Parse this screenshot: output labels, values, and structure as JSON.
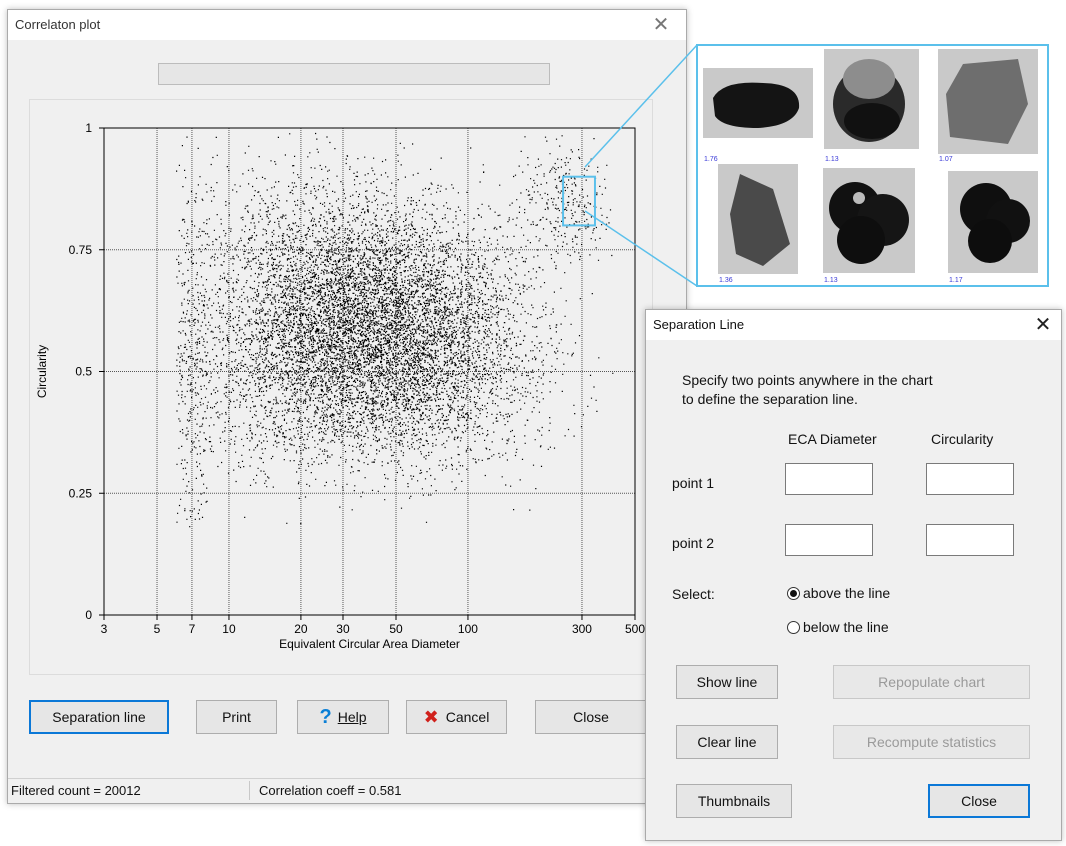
{
  "correlation_window": {
    "title": "Correlaton plot",
    "buttons": {
      "separation_line": "Separation line",
      "print": "Print",
      "help": "Help",
      "cancel": "Cancel",
      "close": "Close"
    },
    "status": {
      "filtered_count": "Filtered count = 20012",
      "correlation": "Correlation coeff = 0.581"
    }
  },
  "chart_data": {
    "type": "scatter",
    "xlabel": "Equivalent Circular Area Diameter",
    "ylabel": "Circularity",
    "x_scale": "log",
    "xlim": [
      3,
      500
    ],
    "ylim": [
      0,
      1
    ],
    "x_ticks": [
      3,
      5,
      7,
      10,
      20,
      30,
      50,
      100,
      300,
      500
    ],
    "y_ticks": [
      0,
      0.25,
      0.5,
      0.75,
      1
    ],
    "x_tick_labels": [
      "3",
      "5",
      "7",
      "10",
      "20",
      "30",
      "50",
      "100",
      "300",
      "500"
    ],
    "y_tick_labels": [
      "0",
      "0.25",
      "0.5",
      "0.75",
      "1"
    ],
    "grid": true,
    "point_color": "#000000",
    "clusters": [
      {
        "x_center": 40,
        "y_center": 0.58,
        "x_spread_log10": 0.28,
        "y_spread": 0.12,
        "count": 9000
      },
      {
        "x_center": 25,
        "y_center": 0.62,
        "x_spread_log10": 0.35,
        "y_spread": 0.16,
        "count": 3000
      },
      {
        "x_center": 250,
        "y_center": 0.85,
        "x_spread_log10": 0.1,
        "y_spread": 0.06,
        "count": 300
      },
      {
        "x_center": 100,
        "y_center": 0.55,
        "x_spread_log10": 0.22,
        "y_spread": 0.12,
        "count": 800
      },
      {
        "x_center": 7,
        "y_center": 0.5,
        "x_spread_log10": 0.05,
        "y_spread": 0.2,
        "count": 300
      }
    ],
    "selection_box": {
      "x_range": [
        250,
        340
      ],
      "y_range": [
        0.8,
        0.9
      ],
      "color": "#5bc0eb"
    }
  },
  "thumbnails_panel": {
    "border_color": "#5bc0eb",
    "labels": [
      "1.76",
      "1.13",
      "1.07",
      "1.36",
      "1.13",
      "1.17"
    ]
  },
  "separation_dialog": {
    "title": "Separation Line",
    "instruction_line1": "Specify two points anywhere in the chart",
    "instruction_line2": "to define the separation line.",
    "col_eca": "ECA Diameter",
    "col_circularity": "Circularity",
    "point1": "point 1",
    "point2": "point 2",
    "point1_eca": "",
    "point1_circ": "",
    "point2_eca": "",
    "point2_circ": "",
    "select_label": "Select:",
    "option_above": "above the line",
    "option_below": "below the line",
    "selected_option": "above",
    "buttons": {
      "show_line": "Show line",
      "repopulate": "Repopulate chart",
      "clear_line": "Clear line",
      "recompute": "Recompute statistics",
      "thumbnails": "Thumbnails",
      "close": "Close"
    }
  },
  "colors": {
    "accent": "#0b78d7",
    "highlight": "#5bc0eb"
  }
}
